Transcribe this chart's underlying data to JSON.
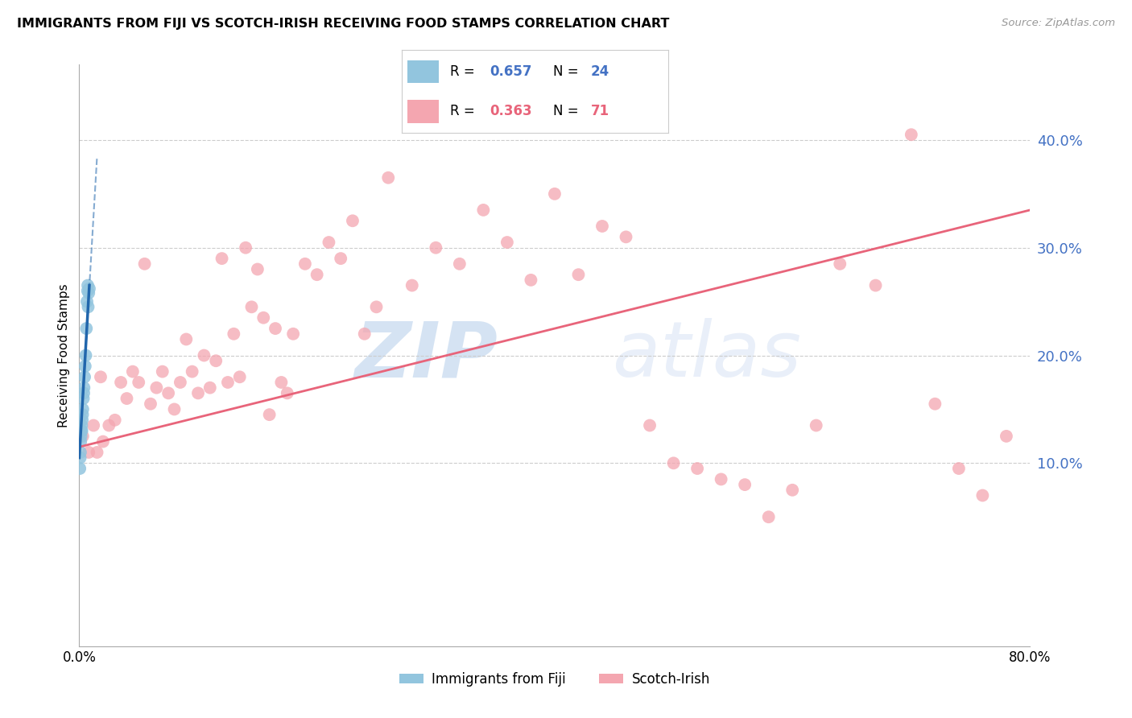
{
  "title": "IMMIGRANTS FROM FIJI VS SCOTCH-IRISH RECEIVING FOOD STAMPS CORRELATION CHART",
  "source": "Source: ZipAtlas.com",
  "ylabel": "Receiving Food Stamps",
  "ytick_values": [
    10,
    20,
    30,
    40
  ],
  "xlim": [
    0,
    80
  ],
  "ylim": [
    -7,
    47
  ],
  "legend_fiji_R": "0.657",
  "legend_fiji_N": "24",
  "legend_scotch_R": "0.363",
  "legend_scotch_N": "71",
  "fiji_color": "#92c5de",
  "scotch_color": "#f4a6b0",
  "fiji_line_color": "#2166ac",
  "scotch_line_color": "#e8647a",
  "watermark_zip": "ZIP",
  "watermark_atlas": "atlas",
  "fiji_x": [
    0.05,
    0.08,
    0.1,
    0.12,
    0.15,
    0.18,
    0.2,
    0.22,
    0.25,
    0.28,
    0.3,
    0.35,
    0.38,
    0.4,
    0.45,
    0.5,
    0.55,
    0.6,
    0.65,
    0.7,
    0.72,
    0.75,
    0.8,
    0.85
  ],
  "fiji_y": [
    9.5,
    10.5,
    11.0,
    12.0,
    12.5,
    13.0,
    13.5,
    13.0,
    14.0,
    14.5,
    15.0,
    16.0,
    16.5,
    17.0,
    18.0,
    19.0,
    20.0,
    22.5,
    25.0,
    26.0,
    26.5,
    24.5,
    25.8,
    26.2
  ],
  "scotch_x": [
    0.3,
    0.8,
    1.2,
    1.5,
    1.8,
    2.0,
    2.5,
    3.0,
    3.5,
    4.0,
    4.5,
    5.0,
    5.5,
    6.0,
    6.5,
    7.0,
    7.5,
    8.0,
    8.5,
    9.0,
    9.5,
    10.0,
    10.5,
    11.0,
    11.5,
    12.0,
    12.5,
    13.0,
    13.5,
    14.0,
    14.5,
    15.0,
    15.5,
    16.0,
    16.5,
    17.0,
    17.5,
    18.0,
    19.0,
    20.0,
    21.0,
    22.0,
    23.0,
    24.0,
    25.0,
    26.0,
    28.0,
    30.0,
    32.0,
    34.0,
    36.0,
    38.0,
    40.0,
    42.0,
    44.0,
    46.0,
    48.0,
    50.0,
    52.0,
    54.0,
    56.0,
    58.0,
    60.0,
    62.0,
    64.0,
    67.0,
    70.0,
    72.0,
    74.0,
    76.0,
    78.0
  ],
  "scotch_y": [
    12.5,
    11.0,
    13.5,
    11.0,
    18.0,
    12.0,
    13.5,
    14.0,
    17.5,
    16.0,
    18.5,
    17.5,
    28.5,
    15.5,
    17.0,
    18.5,
    16.5,
    15.0,
    17.5,
    21.5,
    18.5,
    16.5,
    20.0,
    17.0,
    19.5,
    29.0,
    17.5,
    22.0,
    18.0,
    30.0,
    24.5,
    28.0,
    23.5,
    14.5,
    22.5,
    17.5,
    16.5,
    22.0,
    28.5,
    27.5,
    30.5,
    29.0,
    32.5,
    22.0,
    24.5,
    36.5,
    26.5,
    30.0,
    28.5,
    33.5,
    30.5,
    27.0,
    35.0,
    27.5,
    32.0,
    31.0,
    13.5,
    10.0,
    9.5,
    8.5,
    8.0,
    5.0,
    7.5,
    13.5,
    28.5,
    26.5,
    40.5,
    15.5,
    9.5,
    7.0,
    12.5
  ],
  "fiji_reg_x0": 0.0,
  "fiji_reg_y0": 10.5,
  "fiji_reg_x1": 0.85,
  "fiji_reg_y1": 26.5,
  "fiji_dash_x0": 0.0,
  "fiji_dash_y0": 10.5,
  "fiji_dash_x1": 1.5,
  "fiji_dash_y1": 38.5,
  "scotch_reg_x0": 0.0,
  "scotch_reg_y0": 11.5,
  "scotch_reg_x1": 80.0,
  "scotch_reg_y1": 33.5
}
